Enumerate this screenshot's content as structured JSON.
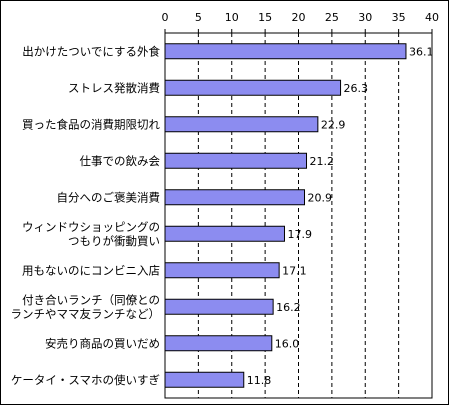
{
  "chart_data": {
    "type": "bar",
    "orientation": "horizontal",
    "title": "",
    "xlabel": "",
    "ylabel": "",
    "xlim": [
      0,
      40
    ],
    "ticks": [
      0,
      5,
      10,
      15,
      20,
      25,
      30,
      35,
      40
    ],
    "tick_labels": [
      "0",
      "5",
      "10",
      "15",
      "20",
      "25",
      "30",
      "35",
      "40"
    ],
    "grid": "vertical dashed",
    "bar_color": "#8c8cf0",
    "categories": [
      [
        "出かけたついでにする外食"
      ],
      [
        "ストレス発散消費"
      ],
      [
        "買った食品の消費期限切れ"
      ],
      [
        "仕事での飲み会"
      ],
      [
        "自分へのご褒美消費"
      ],
      [
        "ウィンドウショッピングの",
        "つもりが衝動買い"
      ],
      [
        "用もないのにコンビニ入店"
      ],
      [
        "付き合いランチ（同僚との",
        "ランチやママ友ランチなど）"
      ],
      [
        "安売り商品の買いだめ"
      ],
      [
        "ケータイ・スマホの使いすぎ"
      ]
    ],
    "values": [
      36.1,
      26.3,
      22.9,
      21.2,
      20.9,
      17.9,
      17.1,
      16.2,
      16.0,
      11.8
    ],
    "value_labels": [
      "36.1",
      "26.3",
      "22.9",
      "21.2",
      "20.9",
      "17.9",
      "17.1",
      "16.2",
      "16.0",
      "11.8"
    ]
  }
}
